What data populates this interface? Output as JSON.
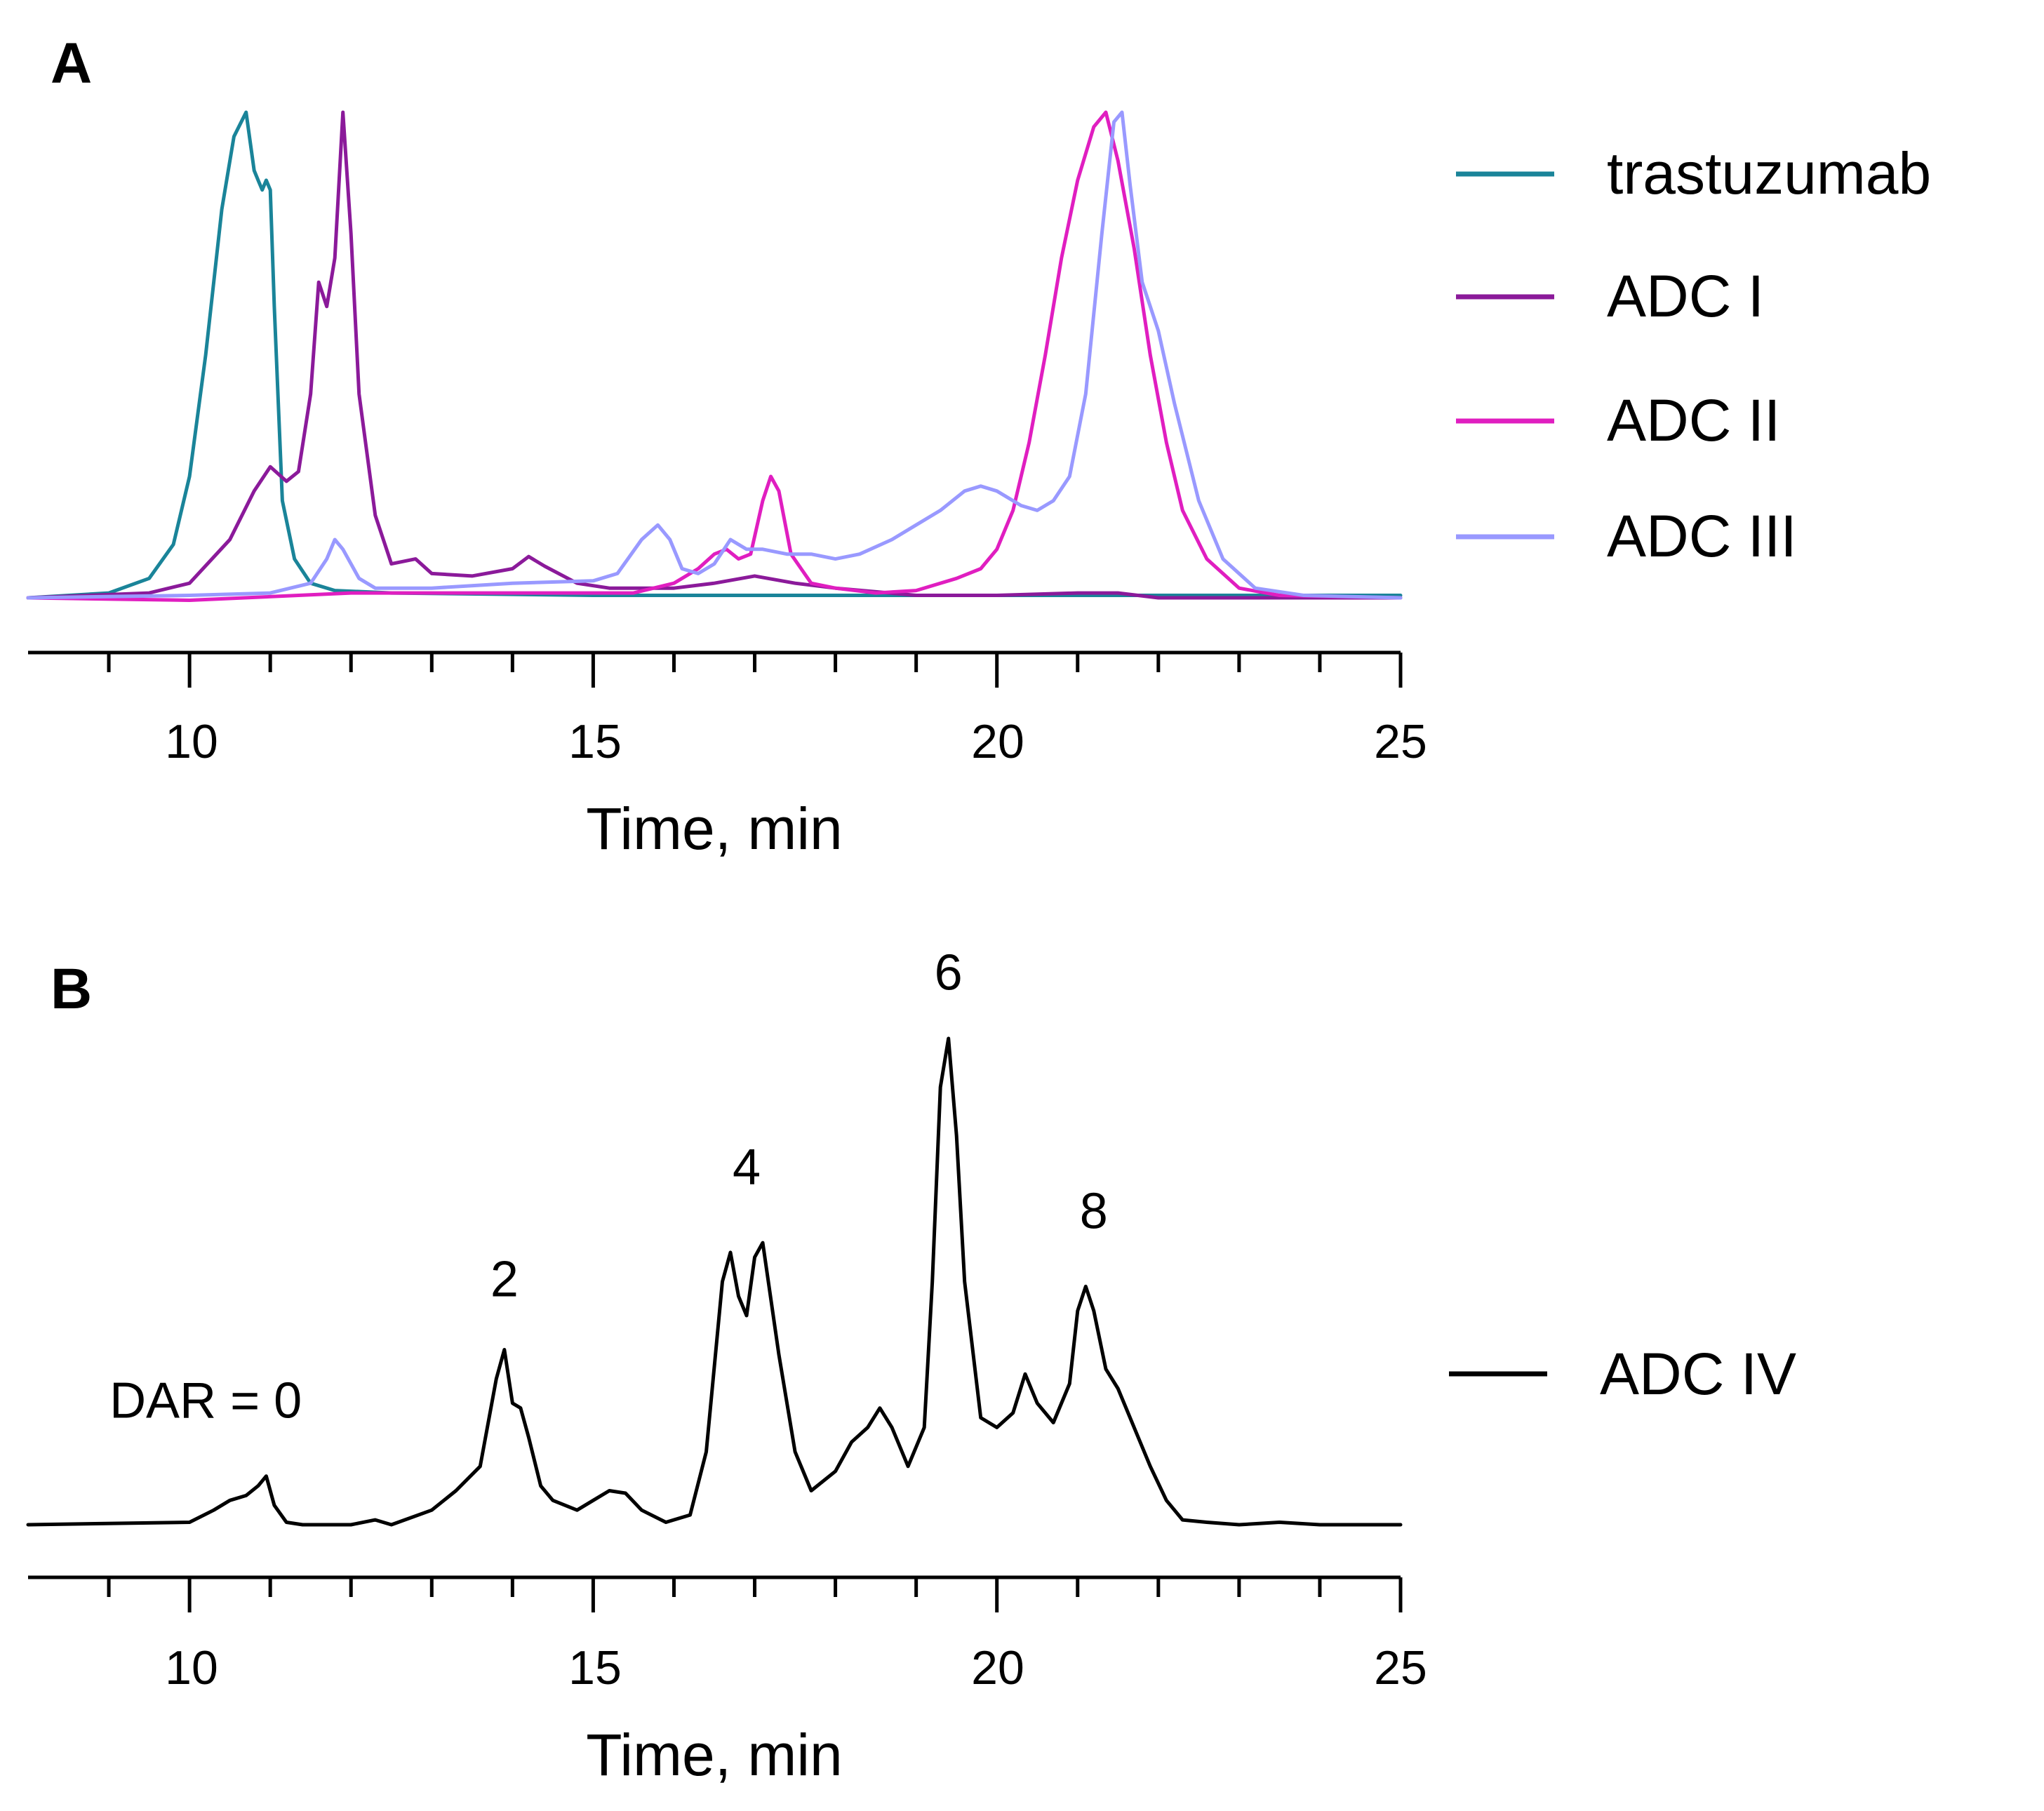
{
  "chart_data": [
    {
      "panel": "A",
      "type": "line",
      "xlabel": "Time, min",
      "ylabel": "",
      "xlim": [
        8,
        25
      ],
      "ylim": [
        0,
        1
      ],
      "grid": false,
      "x_ticks": [
        10,
        15,
        20,
        25
      ],
      "legend_position": "right",
      "series": [
        {
          "name": "trastuzumab",
          "color": "#1a8499",
          "x": [
            8,
            9,
            9.5,
            9.8,
            10.0,
            10.2,
            10.4,
            10.55,
            10.7,
            10.8,
            10.85,
            10.9,
            10.95,
            11.0,
            11.05,
            11.15,
            11.3,
            11.5,
            11.8,
            12.5,
            15,
            20,
            25
          ],
          "y": [
            0.0,
            0.01,
            0.04,
            0.11,
            0.25,
            0.5,
            0.8,
            0.95,
            1.0,
            0.88,
            0.86,
            0.84,
            0.86,
            0.84,
            0.6,
            0.2,
            0.08,
            0.03,
            0.015,
            0.01,
            0.005,
            0.005,
            0.005
          ]
        },
        {
          "name": "ADC I",
          "color": "#8b1a9a",
          "x": [
            8,
            9.5,
            10.0,
            10.5,
            10.8,
            11.0,
            11.2,
            11.35,
            11.5,
            11.6,
            11.7,
            11.8,
            11.9,
            12.0,
            12.1,
            12.3,
            12.5,
            12.8,
            13.0,
            13.5,
            14.0,
            14.2,
            14.4,
            14.8,
            15.2,
            16.0,
            16.5,
            17.0,
            17.5,
            18.0,
            19.0,
            20.0,
            21.0,
            21.5,
            22.0,
            25
          ],
          "y": [
            0.0,
            0.01,
            0.03,
            0.12,
            0.22,
            0.27,
            0.24,
            0.26,
            0.42,
            0.65,
            0.6,
            0.7,
            1.0,
            0.75,
            0.42,
            0.17,
            0.07,
            0.08,
            0.05,
            0.045,
            0.06,
            0.085,
            0.065,
            0.03,
            0.02,
            0.02,
            0.03,
            0.045,
            0.03,
            0.02,
            0.005,
            0.005,
            0.01,
            0.01,
            0.0,
            0.0
          ]
        },
        {
          "name": "ADC II",
          "color": "#e01ec0",
          "x": [
            8,
            10,
            12,
            14,
            15.5,
            16.0,
            16.3,
            16.5,
            16.65,
            16.8,
            16.95,
            17.1,
            17.2,
            17.3,
            17.45,
            17.7,
            18.0,
            18.5,
            19.0,
            19.5,
            19.8,
            20.0,
            20.2,
            20.4,
            20.6,
            20.8,
            21.0,
            21.2,
            21.35,
            21.5,
            21.7,
            21.9,
            22.1,
            22.3,
            22.6,
            23.0,
            23.5,
            25
          ],
          "y": [
            0.0,
            -0.005,
            0.01,
            0.01,
            0.01,
            0.03,
            0.06,
            0.09,
            0.1,
            0.08,
            0.09,
            0.2,
            0.25,
            0.22,
            0.09,
            0.03,
            0.02,
            0.01,
            0.015,
            0.04,
            0.06,
            0.1,
            0.18,
            0.32,
            0.5,
            0.7,
            0.86,
            0.97,
            1.0,
            0.9,
            0.72,
            0.5,
            0.32,
            0.18,
            0.08,
            0.02,
            0.005,
            0.0
          ]
        },
        {
          "name": "ADC III",
          "color": "#9999ff",
          "x": [
            8,
            10,
            11.0,
            11.5,
            11.7,
            11.8,
            11.9,
            12.1,
            12.3,
            13,
            14,
            15,
            15.3,
            15.6,
            15.8,
            15.95,
            16.1,
            16.3,
            16.5,
            16.7,
            16.9,
            17.1,
            17.4,
            17.7,
            18.0,
            18.3,
            18.7,
            19.0,
            19.3,
            19.6,
            19.8,
            20.0,
            20.3,
            20.5,
            20.7,
            20.9,
            21.1,
            21.3,
            21.45,
            21.55,
            21.65,
            21.8,
            22.0,
            22.2,
            22.5,
            22.8,
            23.2,
            23.8,
            25
          ],
          "y": [
            0.0,
            0.005,
            0.01,
            0.03,
            0.08,
            0.12,
            0.1,
            0.04,
            0.02,
            0.02,
            0.03,
            0.035,
            0.05,
            0.12,
            0.15,
            0.12,
            0.06,
            0.05,
            0.07,
            0.12,
            0.1,
            0.1,
            0.09,
            0.09,
            0.08,
            0.09,
            0.12,
            0.15,
            0.18,
            0.22,
            0.23,
            0.22,
            0.19,
            0.18,
            0.2,
            0.25,
            0.42,
            0.75,
            0.98,
            1.0,
            0.85,
            0.65,
            0.55,
            0.4,
            0.2,
            0.08,
            0.02,
            0.005,
            0.0
          ]
        }
      ]
    },
    {
      "panel": "B",
      "type": "line",
      "xlabel": "Time, min",
      "ylabel": "",
      "xlim": [
        8,
        25
      ],
      "ylim": [
        0,
        1
      ],
      "grid": false,
      "x_ticks": [
        10,
        15,
        20,
        25
      ],
      "legend_position": "right",
      "series": [
        {
          "name": "ADC IV",
          "color": "#000000",
          "x": [
            8,
            10.0,
            10.3,
            10.5,
            10.7,
            10.85,
            10.95,
            11.05,
            11.2,
            11.4,
            12.0,
            12.3,
            12.5,
            13.0,
            13.3,
            13.6,
            13.8,
            13.9,
            14.0,
            14.1,
            14.2,
            14.35,
            14.5,
            14.8,
            15.0,
            15.2,
            15.4,
            15.6,
            15.9,
            16.2,
            16.4,
            16.6,
            16.7,
            16.8,
            16.9,
            17.0,
            17.1,
            17.3,
            17.5,
            17.7,
            18.0,
            18.2,
            18.4,
            18.55,
            18.7,
            18.9,
            19.1,
            19.2,
            19.3,
            19.4,
            19.5,
            19.6,
            19.8,
            20.0,
            20.2,
            20.35,
            20.5,
            20.7,
            20.9,
            21.0,
            21.1,
            21.2,
            21.35,
            21.5,
            21.7,
            21.9,
            22.1,
            22.3,
            22.6,
            23.0,
            23.5,
            24,
            25
          ],
          "y": [
            0.0,
            0.005,
            0.03,
            0.05,
            0.06,
            0.08,
            0.1,
            0.04,
            0.005,
            0.0,
            0.0,
            0.01,
            0.0,
            0.03,
            0.07,
            0.12,
            0.3,
            0.36,
            0.25,
            0.24,
            0.18,
            0.08,
            0.05,
            0.03,
            0.05,
            0.07,
            0.065,
            0.03,
            0.005,
            0.02,
            0.15,
            0.5,
            0.56,
            0.47,
            0.43,
            0.55,
            0.58,
            0.35,
            0.15,
            0.07,
            0.11,
            0.17,
            0.2,
            0.24,
            0.2,
            0.12,
            0.2,
            0.5,
            0.9,
            1.0,
            0.8,
            0.5,
            0.22,
            0.2,
            0.23,
            0.31,
            0.25,
            0.21,
            0.29,
            0.44,
            0.49,
            0.44,
            0.32,
            0.28,
            0.2,
            0.12,
            0.05,
            0.01,
            0.005,
            0.0,
            0.005,
            0.0,
            0.0
          ]
        }
      ],
      "annotations": [
        {
          "text": "DAR = 0",
          "x": 10.2,
          "y": 0.22
        },
        {
          "text": "2",
          "x": 13.9,
          "y": 0.47
        },
        {
          "text": "4",
          "x": 16.9,
          "y": 0.7
        },
        {
          "text": "6",
          "x": 19.4,
          "y": 1.1
        },
        {
          "text": "8",
          "x": 21.2,
          "y": 0.61
        }
      ]
    }
  ],
  "panels": [
    {
      "label": "A",
      "xlabel": "Time, min"
    },
    {
      "label": "B",
      "xlabel": "Time, min"
    }
  ],
  "tick_labels": [
    "10",
    "15",
    "20",
    "25"
  ],
  "legend_A": [
    "trastuzumab",
    "ADC I",
    "ADC II",
    "ADC III"
  ],
  "legend_B": [
    "ADC IV"
  ]
}
